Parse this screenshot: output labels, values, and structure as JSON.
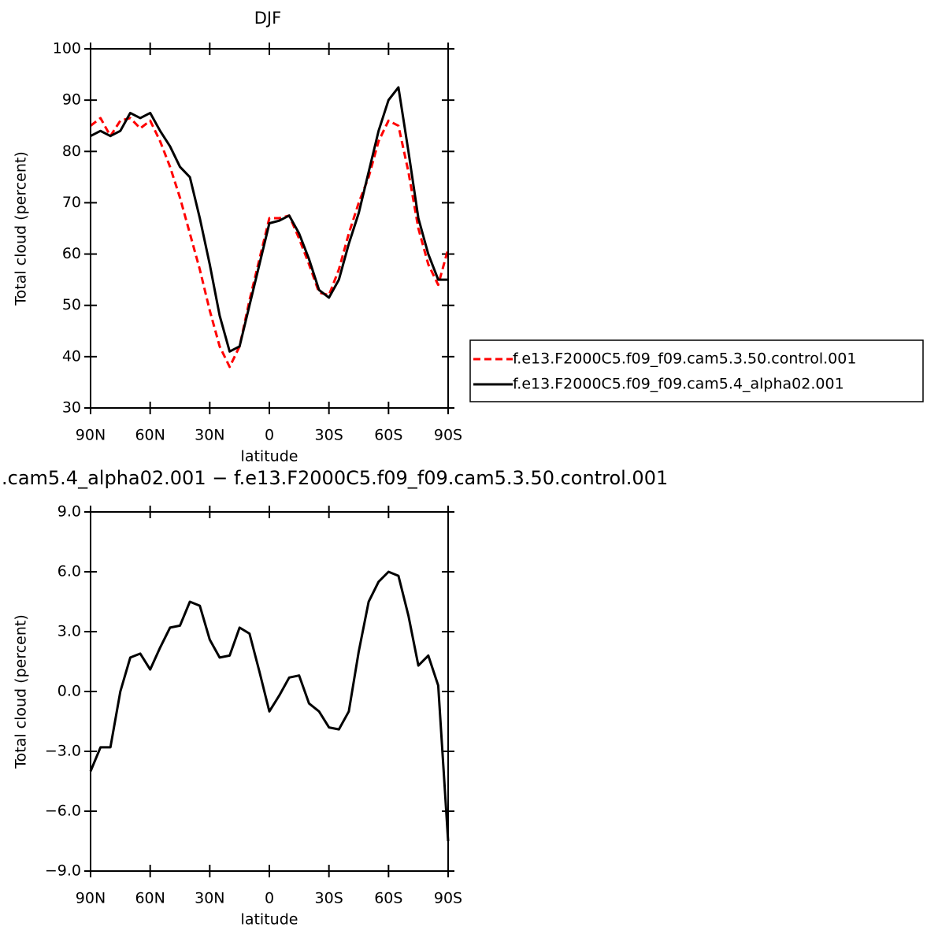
{
  "chart_data": [
    {
      "type": "line",
      "title": "DJF",
      "xlabel": "latitude",
      "ylabel": "Total cloud (percent)",
      "x": [
        90,
        85,
        80,
        75,
        70,
        65,
        60,
        55,
        50,
        45,
        40,
        35,
        30,
        25,
        20,
        15,
        10,
        5,
        0,
        -5,
        -10,
        -15,
        -20,
        -25,
        -30,
        -35,
        -40,
        -45,
        -50,
        -55,
        -60,
        -65,
        -70,
        -75,
        -80,
        -85,
        -90
      ],
      "xlim": [
        90,
        -90
      ],
      "xticks": [
        {
          "value": 90,
          "label": "90N"
        },
        {
          "value": 60,
          "label": "60N"
        },
        {
          "value": 30,
          "label": "30N"
        },
        0,
        {
          "value": -30,
          "label": "30S"
        },
        {
          "value": -60,
          "label": "60S"
        },
        {
          "value": -90,
          "label": "90S"
        }
      ],
      "ylim": [
        30,
        100
      ],
      "yticks": [
        30,
        40,
        50,
        60,
        70,
        80,
        90,
        100
      ],
      "series": [
        {
          "name": "f.e13.F2000C5.f09_f09.cam5.3.50.control.001",
          "color": "#ff0000",
          "dashed": true,
          "values": [
            85,
            86.5,
            83,
            86,
            86.5,
            84.5,
            86,
            82,
            77,
            71,
            64,
            57,
            49,
            42,
            38,
            42,
            51,
            59,
            67,
            67,
            67.5,
            63,
            58,
            52.5,
            52,
            57,
            64,
            70,
            75,
            82,
            86,
            85,
            76,
            65,
            58,
            54,
            61
          ]
        },
        {
          "name": "f.e13.F2000C5.f09_f09.cam5.4_alpha02.001",
          "color": "#000000",
          "dashed": false,
          "values": [
            83,
            84,
            83,
            84,
            87.5,
            86.5,
            87.5,
            84,
            81,
            77,
            75,
            67,
            58,
            48,
            41,
            42,
            50,
            58,
            66,
            66.5,
            67.5,
            64,
            59,
            53,
            51.5,
            55,
            62,
            68,
            76,
            84,
            90,
            92.5,
            80,
            67,
            60,
            55,
            55
          ]
        }
      ]
    },
    {
      "type": "line",
      "title": ".cam5.4_alpha02.001 − f.e13.F2000C5.f09_f09.cam5.3.50.control.001",
      "xlabel": "latitude",
      "ylabel": "Total cloud (percent)",
      "x": [
        90,
        85,
        80,
        75,
        70,
        65,
        60,
        55,
        50,
        45,
        40,
        35,
        30,
        25,
        20,
        15,
        10,
        5,
        0,
        -5,
        -10,
        -15,
        -20,
        -25,
        -30,
        -35,
        -40,
        -45,
        -50,
        -55,
        -60,
        -65,
        -70,
        -75,
        -80,
        -85,
        -90
      ],
      "xlim": [
        90,
        -90
      ],
      "xticks": [
        {
          "value": 90,
          "label": "90N"
        },
        {
          "value": 60,
          "label": "60N"
        },
        {
          "value": 30,
          "label": "30N"
        },
        0,
        {
          "value": -30,
          "label": "30S"
        },
        {
          "value": -60,
          "label": "60S"
        },
        {
          "value": -90,
          "label": "90S"
        }
      ],
      "ylim": [
        -9,
        9
      ],
      "yticks": [
        {
          "value": -9,
          "label": "−9.0"
        },
        {
          "value": -6,
          "label": "−6.0"
        },
        {
          "value": -3,
          "label": "−3.0"
        },
        {
          "value": 0,
          "label": "0.0"
        },
        {
          "value": 3,
          "label": "3.0"
        },
        {
          "value": 6,
          "label": "6.0"
        },
        {
          "value": 9,
          "label": "9.0"
        }
      ],
      "series": [
        {
          "color": "#000000",
          "dashed": false,
          "values": [
            -4,
            -2.8,
            -2.8,
            0,
            1.7,
            1.9,
            1.1,
            2.2,
            3.2,
            3.3,
            4.5,
            4.3,
            2.6,
            1.7,
            1.8,
            3.2,
            2.9,
            1.0,
            -1.0,
            -0.2,
            0.7,
            0.8,
            -0.6,
            -1.0,
            -1.8,
            -1.9,
            -1.0,
            2.0,
            4.5,
            5.5,
            6.0,
            5.8,
            3.8,
            1.3,
            1.8,
            0.3,
            -7.5
          ]
        }
      ]
    }
  ]
}
